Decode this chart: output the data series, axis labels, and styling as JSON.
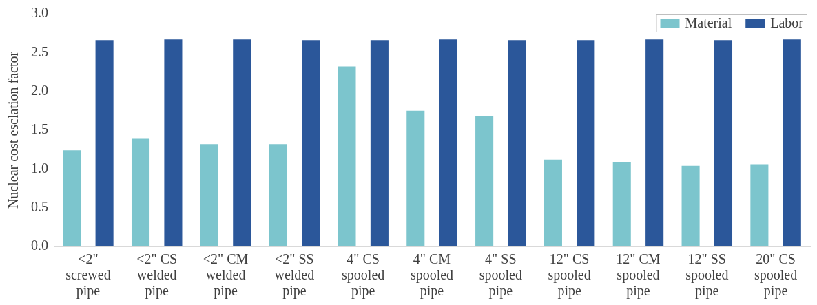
{
  "chart_data": {
    "type": "bar",
    "ylabel": "Nuclear cost esclation factor",
    "categories": [
      "<2\" screwed pipe",
      "<2\" CS welded pipe",
      "<2\" CM welded pipe",
      "<2\" SS welded pipe",
      "4\" CS spooled pipe",
      "4\" CM spooled pipe",
      "4\" SS spooled pipe",
      "12\" CS spooled pipe",
      "12\" CM spooled pipe",
      "12\" SS spooled pipe",
      "20\" CS spooled pipe"
    ],
    "series": [
      {
        "name": "Material",
        "color": "#7cc5cd",
        "values": [
          1.24,
          1.39,
          1.32,
          1.32,
          2.32,
          1.75,
          1.68,
          1.12,
          1.09,
          1.04,
          1.06
        ]
      },
      {
        "name": "Labor",
        "color": "#2b579a",
        "values": [
          2.66,
          2.67,
          2.67,
          2.66,
          2.66,
          2.67,
          2.66,
          2.66,
          2.67,
          2.66,
          2.67
        ]
      }
    ],
    "ylim": [
      0,
      3
    ],
    "yticks": [
      {
        "value": 0,
        "label": "0.0"
      },
      {
        "value": 0.5,
        "label": "0.5"
      },
      {
        "value": 1,
        "label": "1.0"
      },
      {
        "value": 1.5,
        "label": "1.5"
      },
      {
        "value": 2,
        "label": "2.0"
      },
      {
        "value": 2.5,
        "label": "2.5"
      },
      {
        "value": 3,
        "label": "3.0"
      }
    ],
    "grid": false,
    "legend": "top right"
  }
}
